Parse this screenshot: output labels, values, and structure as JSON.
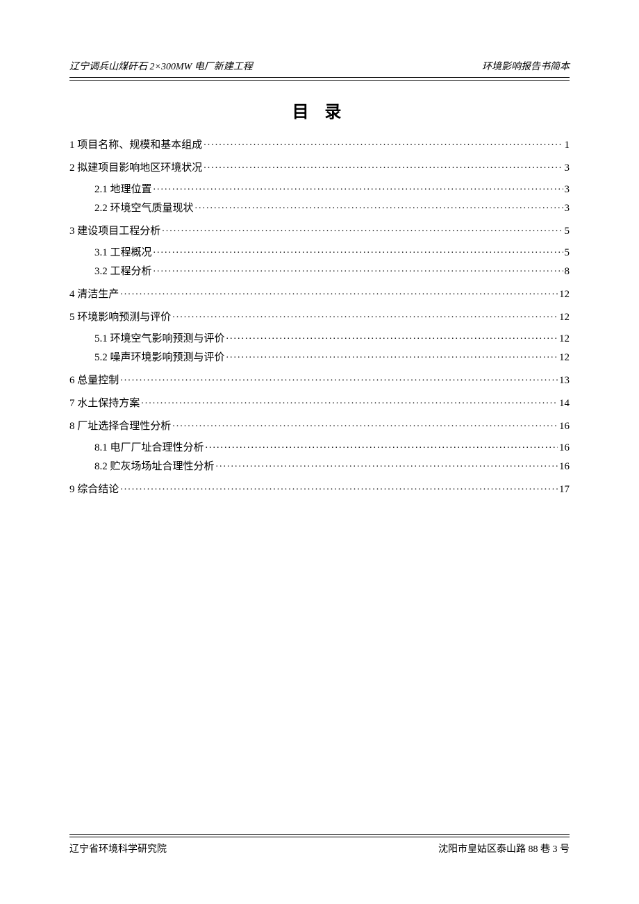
{
  "header": {
    "left": "辽宁调兵山煤矸石 2×300MW 电厂新建工程",
    "right": "环境影响报告书简本"
  },
  "title": "目 录",
  "toc": [
    {
      "level": 1,
      "label": "1 项目名称、规模和基本组成",
      "page": "1"
    },
    {
      "level": 1,
      "label": "2 拟建项目影响地区环境状况",
      "page": "3"
    },
    {
      "level": 2,
      "label": "2.1 地理位置",
      "page": "3"
    },
    {
      "level": 2,
      "label": "2.2 环境空气质量现状",
      "page": "3"
    },
    {
      "level": 1,
      "label": "3 建设项目工程分析",
      "page": "5"
    },
    {
      "level": 2,
      "label": "3.1 工程概况",
      "page": "5"
    },
    {
      "level": 2,
      "label": "3.2 工程分析",
      "page": "8"
    },
    {
      "level": 1,
      "label": "4 清洁生产",
      "page": "12"
    },
    {
      "level": 1,
      "label": "5 环境影响预测与评价",
      "page": "12"
    },
    {
      "level": 2,
      "label": "5.1 环境空气影响预测与评价",
      "page": "12"
    },
    {
      "level": 2,
      "label": "5.2 噪声环境影响预测与评价",
      "page": "12"
    },
    {
      "level": 1,
      "label": "6 总量控制",
      "page": "13"
    },
    {
      "level": 1,
      "label": "7 水土保持方案",
      "page": "14"
    },
    {
      "level": 1,
      "label": "8 厂址选择合理性分析",
      "page": "16"
    },
    {
      "level": 2,
      "label": "8.1 电厂厂址合理性分析",
      "page": "16"
    },
    {
      "level": 2,
      "label": "8.2 贮灰场场址合理性分析",
      "page": "16"
    },
    {
      "level": 1,
      "label": "9 综合结论",
      "page": "17"
    }
  ],
  "footer": {
    "left": "辽宁省环境科学研究院",
    "right": "沈阳市皇姑区泰山路 88 巷 3 号"
  }
}
